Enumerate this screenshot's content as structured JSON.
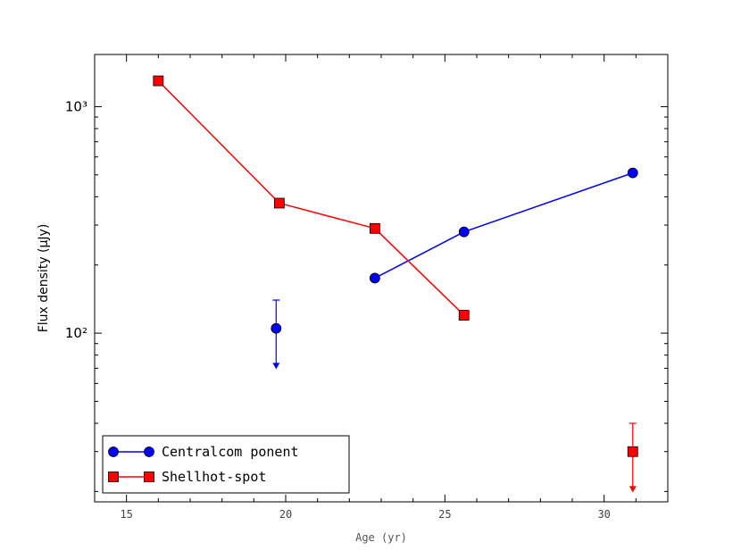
{
  "chart_data": {
    "type": "line",
    "xlabel": "Age (yr)",
    "ylabel": "Flux density (μJy)",
    "xlim": [
      14,
      32
    ],
    "ylim": [
      18,
      1700
    ],
    "yscale": "log",
    "xticks": [
      15,
      20,
      25,
      30
    ],
    "yticks": [
      100,
      1000
    ],
    "ytick_labels": [
      "10²",
      "10³"
    ],
    "grid": false,
    "legend_position": "bottom-left",
    "series": [
      {
        "name": "Centralcom ponent",
        "color": "#0000ff",
        "marker": "circle",
        "line_points": [
          {
            "x": 22.8,
            "y": 175
          },
          {
            "x": 25.6,
            "y": 280
          },
          {
            "x": 30.9,
            "y": 510
          }
        ],
        "upper_limits": [
          {
            "x": 19.7,
            "y": 105,
            "err_top": 140,
            "err_bottom": 70
          }
        ]
      },
      {
        "name": "Shellhot-spot",
        "color": "#ff0000",
        "marker": "square",
        "line_points": [
          {
            "x": 16.0,
            "y": 1300
          },
          {
            "x": 19.8,
            "y": 375
          },
          {
            "x": 22.8,
            "y": 290
          },
          {
            "x": 25.6,
            "y": 120
          }
        ],
        "upper_limits": [
          {
            "x": 30.9,
            "y": 30,
            "err_top": 40,
            "err_bottom": 20
          }
        ]
      }
    ]
  }
}
